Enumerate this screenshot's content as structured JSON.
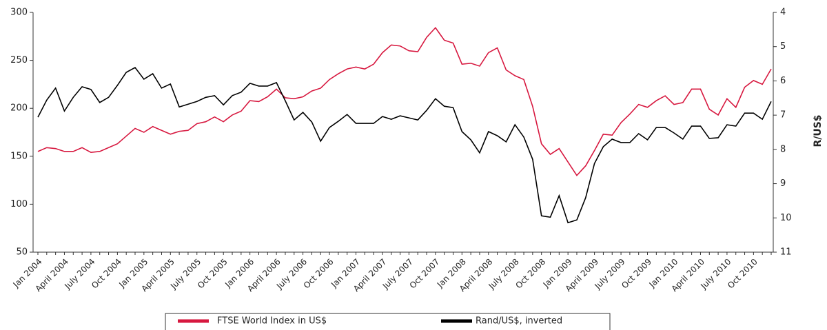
{
  "chart_data": {
    "type": "line",
    "categories": [
      "Jan 2004",
      null,
      null,
      "April 2004",
      null,
      null,
      "July 2004",
      null,
      null,
      "Oct 2004",
      null,
      null,
      "Jan 2005",
      null,
      null,
      "April 2005",
      null,
      null,
      "July 2005",
      null,
      null,
      "Oct 2005",
      null,
      null,
      "Jan 2006",
      null,
      null,
      "April 2006",
      null,
      null,
      "July 2006",
      null,
      null,
      "Oct 2006",
      null,
      null,
      "Jan 2007",
      null,
      null,
      "April 2007",
      null,
      null,
      "July 2007",
      null,
      null,
      "Oct 2007",
      null,
      null,
      "Jan 2008",
      null,
      null,
      "April 2008",
      null,
      null,
      "July 2008",
      null,
      null,
      "Oct 2008",
      null,
      null,
      "Jan 2009",
      null,
      null,
      "April 2009",
      null,
      null,
      "July 2009",
      null,
      null,
      "Oct 2009",
      null,
      null,
      "Jan 2010",
      null,
      null,
      "April 2010",
      null,
      null,
      "July 2010",
      null,
      null,
      "Oct 2010",
      null,
      null
    ],
    "series": [
      {
        "name": "FTSE World Index in US$",
        "color": "#d7183f",
        "values": [
          155,
          159,
          158,
          155,
          155,
          159,
          154,
          155,
          159,
          163,
          171,
          179,
          175,
          181,
          177,
          173,
          176,
          177,
          184,
          186,
          191,
          186,
          193,
          197,
          208,
          207,
          212,
          220,
          211,
          210,
          212,
          218,
          221,
          230,
          236,
          241,
          243,
          241,
          246,
          258,
          266,
          265,
          260,
          259,
          274,
          284,
          271,
          268,
          246,
          247,
          244,
          258,
          263,
          240,
          234,
          230,
          202,
          163,
          152,
          158,
          144,
          130,
          140,
          156,
          173,
          172,
          185,
          194,
          204,
          201,
          208,
          213,
          204,
          206,
          220,
          220,
          199,
          193,
          210,
          201,
          222,
          229,
          225,
          241
        ]
      },
      {
        "name": "Rand/US$, inverted",
        "color": "#000000",
        "axis": "y2",
        "values": [
          7.06,
          6.56,
          6.21,
          6.88,
          6.48,
          6.17,
          6.25,
          6.63,
          6.48,
          6.13,
          5.75,
          5.61,
          5.95,
          5.79,
          6.21,
          6.09,
          6.76,
          6.68,
          6.6,
          6.48,
          6.43,
          6.7,
          6.43,
          6.33,
          6.07,
          6.15,
          6.15,
          6.05,
          6.58,
          7.14,
          6.92,
          7.2,
          7.76,
          7.36,
          7.18,
          6.98,
          7.24,
          7.24,
          7.24,
          7.04,
          7.12,
          7.02,
          7.08,
          7.14,
          6.86,
          6.52,
          6.74,
          6.78,
          7.48,
          7.72,
          8.1,
          7.48,
          7.6,
          7.78,
          7.28,
          7.64,
          8.29,
          9.94,
          9.98,
          9.35,
          10.14,
          10.06,
          9.41,
          8.41,
          7.92,
          7.7,
          7.8,
          7.8,
          7.54,
          7.72,
          7.36,
          7.36,
          7.52,
          7.7,
          7.32,
          7.32,
          7.68,
          7.66,
          7.28,
          7.32,
          6.94,
          6.94,
          7.12,
          6.6
        ]
      }
    ],
    "ylim": [
      50,
      300
    ],
    "yticks": [
      50,
      100,
      150,
      200,
      250,
      300
    ],
    "y2label": "R/US$",
    "y2lim": [
      11,
      4
    ],
    "y2ticks": [
      4,
      5,
      6,
      7,
      8,
      9,
      10,
      11
    ],
    "legend": "bottom"
  }
}
